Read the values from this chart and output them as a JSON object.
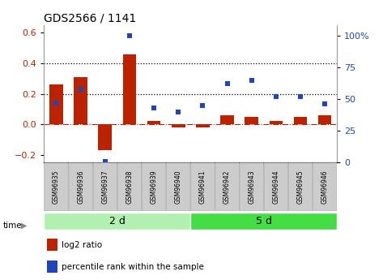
{
  "title": "GDS2566 / 1141",
  "samples": [
    "GSM96935",
    "GSM96936",
    "GSM96937",
    "GSM96938",
    "GSM96939",
    "GSM96940",
    "GSM96941",
    "GSM96942",
    "GSM96943",
    "GSM96944",
    "GSM96945",
    "GSM96946"
  ],
  "log2_ratio": [
    0.26,
    0.31,
    -0.17,
    0.46,
    0.02,
    -0.02,
    -0.02,
    0.06,
    0.05,
    0.02,
    0.05,
    0.06
  ],
  "pct_rank": [
    47,
    58,
    1,
    100,
    43,
    40,
    45,
    62,
    65,
    52,
    52,
    46
  ],
  "groups": [
    {
      "label": "2 d",
      "start": 0,
      "end": 6,
      "color": "#b2f0b2"
    },
    {
      "label": "5 d",
      "start": 6,
      "end": 12,
      "color": "#44dd44"
    }
  ],
  "ylim_left": [
    -0.25,
    0.65
  ],
  "ylim_right": [
    0,
    108.33
  ],
  "yticks_left": [
    -0.2,
    0.0,
    0.2,
    0.4,
    0.6
  ],
  "yticks_right": [
    0,
    25,
    50,
    75,
    100
  ],
  "yticklabels_right": [
    "0",
    "25",
    "50",
    "75",
    "100%"
  ],
  "hlines": [
    0.2,
    0.4
  ],
  "bar_color": "#bb2200",
  "scatter_color": "#2244bb",
  "bar_width": 0.55,
  "bg_color": "#ffffff",
  "zero_line_color": "#bb2200",
  "legend_items": [
    {
      "color": "#bb2200",
      "label": "log2 ratio"
    },
    {
      "color": "#2244bb",
      "label": "percentile rank within the sample"
    }
  ]
}
